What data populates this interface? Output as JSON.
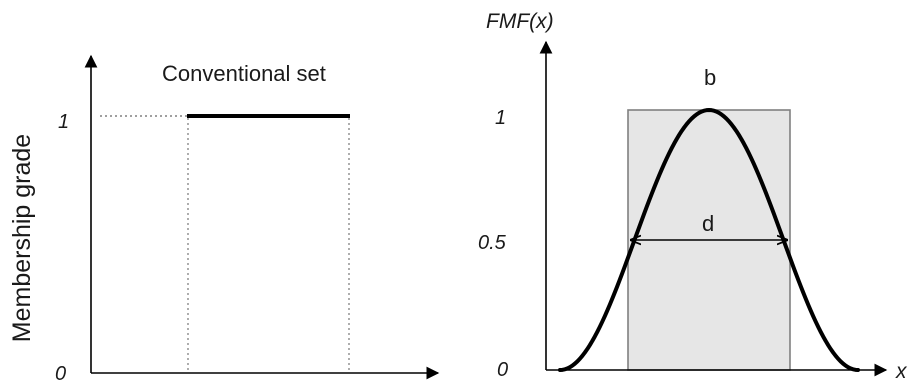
{
  "left_panel": {
    "ylabel": "Membership grade",
    "title": "Conventional set",
    "ticks": [
      "1",
      "0"
    ]
  },
  "right_panel": {
    "ylabel": "FMF(x)",
    "xlabel": "x",
    "ticks": [
      "1",
      "0.5",
      "0"
    ],
    "peak_label": "b",
    "width_label": "d"
  },
  "colors": {
    "line": "#000000",
    "rect_fill": "#e6e6e6",
    "rect_stroke": "#808080",
    "guide": "#808080"
  }
}
